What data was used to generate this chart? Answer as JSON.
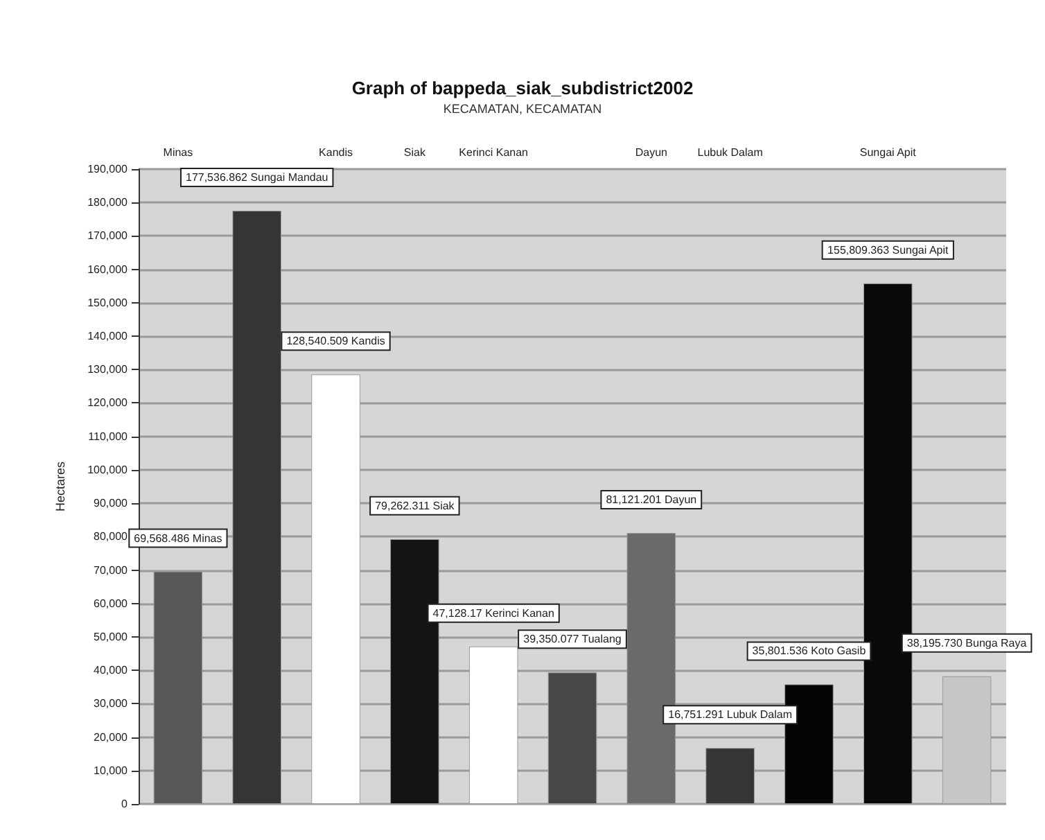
{
  "chart_data": {
    "type": "bar",
    "title": "Graph of bappeda_siak_subdistrict2002",
    "subtitle": "KECAMATAN, KECAMATAN",
    "ylabel": "Hectares",
    "categories": [
      "Minas",
      null,
      "Kandis",
      "Siak",
      "Kerinci Kanan",
      null,
      "Dayun",
      "Lubuk Dalam",
      null,
      "Sungai Apit",
      null
    ],
    "values": [
      69568.486,
      177536.862,
      128540.509,
      79262.311,
      47128.17,
      39350.077,
      81121.201,
      16751.291,
      35801.536,
      155809.363,
      38195.73
    ],
    "colors": [
      "#575757",
      "#353535",
      "#ffffff",
      "#141414",
      "#ffffff",
      "#474747",
      "#6a6a6a",
      "#363636",
      "#050505",
      "#0a0a0a",
      "#c6c6c6"
    ],
    "value_labels": [
      "69,568.486 Minas",
      "177,536.862 Sungai Mandau",
      "128,540.509 Kandis",
      "79,262.311 Siak",
      "47,128.17 Kerinci Kanan",
      "39,350.077 Tualang",
      "81,121.201 Dayun",
      "16,751.291 Lubuk Dalam",
      "35,801.536 Koto Gasib",
      "155,809.363 Sungai Apit",
      "38,195.730 Bunga Raya"
    ],
    "ylim": [
      0,
      190000
    ],
    "yticks": [
      0,
      {
        "value": 10000,
        "label": "10,000"
      },
      {
        "value": 20000,
        "label": "20,000"
      },
      {
        "value": 30000,
        "label": "30,000"
      },
      {
        "value": 40000,
        "label": "40,000"
      },
      {
        "value": 50000,
        "label": "50,000"
      },
      {
        "value": 60000,
        "label": "60,000"
      },
      {
        "value": 70000,
        "label": "70,000"
      },
      {
        "value": 80000,
        "label": "80,000"
      },
      {
        "value": 90000,
        "label": "90,000"
      },
      {
        "value": 100000,
        "label": "100,000"
      },
      {
        "value": 110000,
        "label": "110,000"
      },
      {
        "value": 120000,
        "label": "120,000"
      },
      {
        "value": 130000,
        "label": "130,000"
      },
      {
        "value": 140000,
        "label": "140,000"
      },
      {
        "value": 150000,
        "label": "150,000"
      },
      {
        "value": 160000,
        "label": "160,000"
      },
      {
        "value": 170000,
        "label": "170,000"
      },
      {
        "value": 180000,
        "label": "180,000"
      },
      {
        "value": 190000,
        "label": "190,000"
      }
    ],
    "grid": "y"
  }
}
